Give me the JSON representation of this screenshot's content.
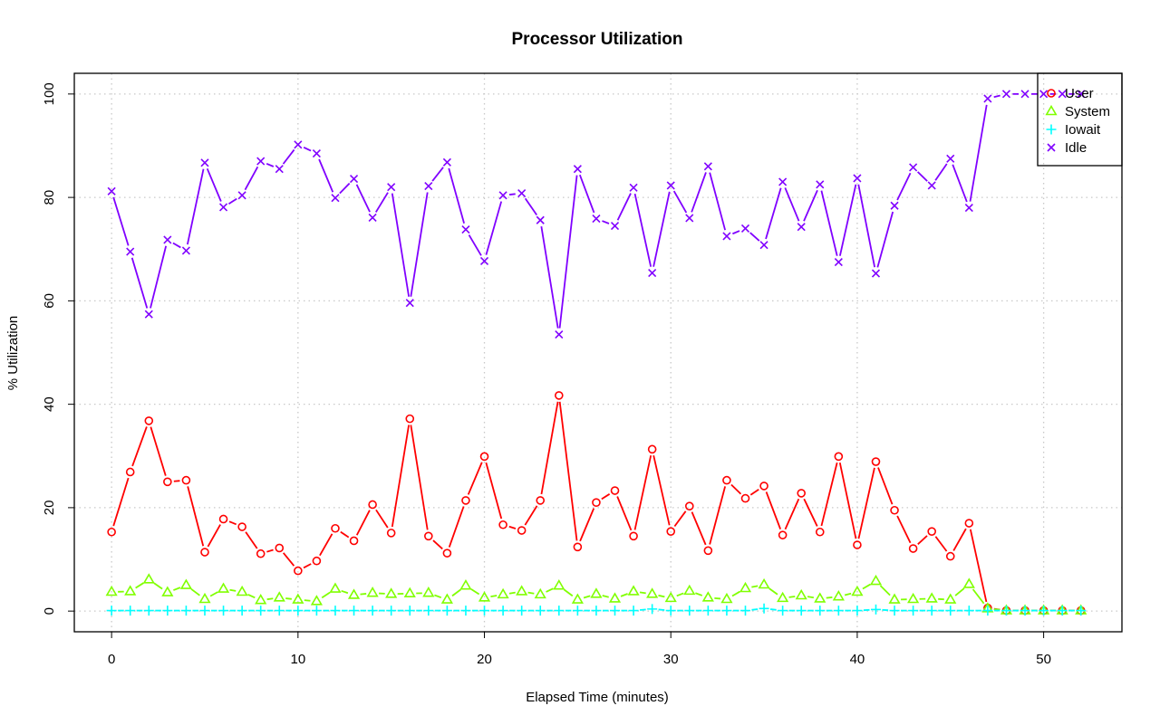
{
  "chart_data": {
    "type": "line",
    "title": "Processor Utilization",
    "xlabel": "Elapsed Time (minutes)",
    "ylabel": "% Utilization",
    "xlim": [
      -2,
      54.2
    ],
    "ylim": [
      -4,
      104
    ],
    "xticks": [
      0,
      10,
      20,
      30,
      40,
      50
    ],
    "yticks": [
      0,
      20,
      40,
      60,
      80,
      100
    ],
    "grid": true,
    "legend_position": "top-right",
    "x": [
      0,
      1,
      2,
      3,
      4,
      5,
      6,
      7,
      8,
      9,
      10,
      11,
      12,
      13,
      14,
      15,
      16,
      17,
      18,
      19,
      20,
      21,
      22,
      23,
      24,
      25,
      26,
      27,
      28,
      29,
      30,
      31,
      32,
      33,
      34,
      35,
      36,
      37,
      38,
      39,
      40,
      41,
      42,
      43,
      44,
      45,
      46,
      47,
      48,
      49,
      50,
      51,
      52
    ],
    "series": [
      {
        "name": "User",
        "color": "#ff0000",
        "marker": "circle",
        "values": [
          15.3,
          26.9,
          36.8,
          25.0,
          25.3,
          11.4,
          17.8,
          16.3,
          11.1,
          12.2,
          7.8,
          9.7,
          16.0,
          13.6,
          20.6,
          15.1,
          37.2,
          14.5,
          11.2,
          21.4,
          29.9,
          16.7,
          15.6,
          21.4,
          41.7,
          12.4,
          21.0,
          23.3,
          14.5,
          31.3,
          15.4,
          20.3,
          11.7,
          25.3,
          21.8,
          24.2,
          14.7,
          22.8,
          15.3,
          29.9,
          12.8,
          28.9,
          19.5,
          12.1,
          15.4,
          10.6,
          17.0,
          0.6,
          0.1,
          0.1,
          0.1,
          0.1,
          0.1
        ]
      },
      {
        "name": "System",
        "color": "#80ff00",
        "marker": "triangle",
        "values": [
          3.7,
          3.8,
          6.1,
          3.6,
          5.0,
          2.3,
          4.3,
          3.7,
          2.1,
          2.6,
          2.2,
          1.9,
          4.3,
          3.1,
          3.5,
          3.3,
          3.4,
          3.5,
          2.2,
          4.9,
          2.6,
          3.2,
          3.8,
          3.2,
          4.9,
          2.2,
          3.3,
          2.4,
          3.8,
          3.3,
          2.5,
          3.9,
          2.6,
          2.3,
          4.4,
          5.1,
          2.5,
          3.0,
          2.4,
          2.8,
          3.7,
          5.8,
          2.2,
          2.3,
          2.4,
          2.2,
          5.2,
          0.5,
          0.1,
          0.1,
          0.1,
          0.1,
          0.1
        ]
      },
      {
        "name": "Iowait",
        "color": "#00ffff",
        "marker": "plus",
        "values": [
          0.1,
          0.1,
          0.1,
          0.1,
          0.1,
          0.1,
          0.1,
          0.1,
          0.1,
          0.1,
          0.1,
          0.1,
          0.1,
          0.1,
          0.1,
          0.1,
          0.1,
          0.1,
          0.1,
          0.1,
          0.1,
          0.1,
          0.1,
          0.1,
          0.1,
          0.1,
          0.1,
          0.1,
          0.1,
          0.4,
          0.1,
          0.1,
          0.1,
          0.1,
          0.1,
          0.5,
          0.1,
          0.1,
          0.1,
          0.1,
          0.1,
          0.3,
          0.1,
          0.1,
          0.1,
          0.1,
          0.1,
          0.1,
          0.1,
          0.1,
          0.1,
          0.1,
          0.1
        ]
      },
      {
        "name": "Idle",
        "color": "#8000ff",
        "marker": "x",
        "values": [
          81.2,
          69.5,
          57.4,
          71.8,
          69.7,
          86.7,
          78.1,
          80.4,
          87.0,
          85.5,
          90.2,
          88.5,
          79.9,
          83.6,
          76.1,
          82.0,
          59.6,
          82.2,
          86.8,
          73.8,
          67.7,
          80.4,
          80.8,
          75.6,
          53.5,
          85.5,
          75.9,
          74.5,
          81.9,
          65.4,
          82.3,
          76.0,
          86.0,
          72.5,
          74.0,
          70.8,
          83.0,
          74.3,
          82.5,
          67.5,
          83.7,
          65.3,
          78.4,
          85.8,
          82.3,
          87.5,
          78.0,
          99.1,
          100.0,
          100.0,
          100.0,
          100.0,
          100.0
        ]
      }
    ]
  }
}
